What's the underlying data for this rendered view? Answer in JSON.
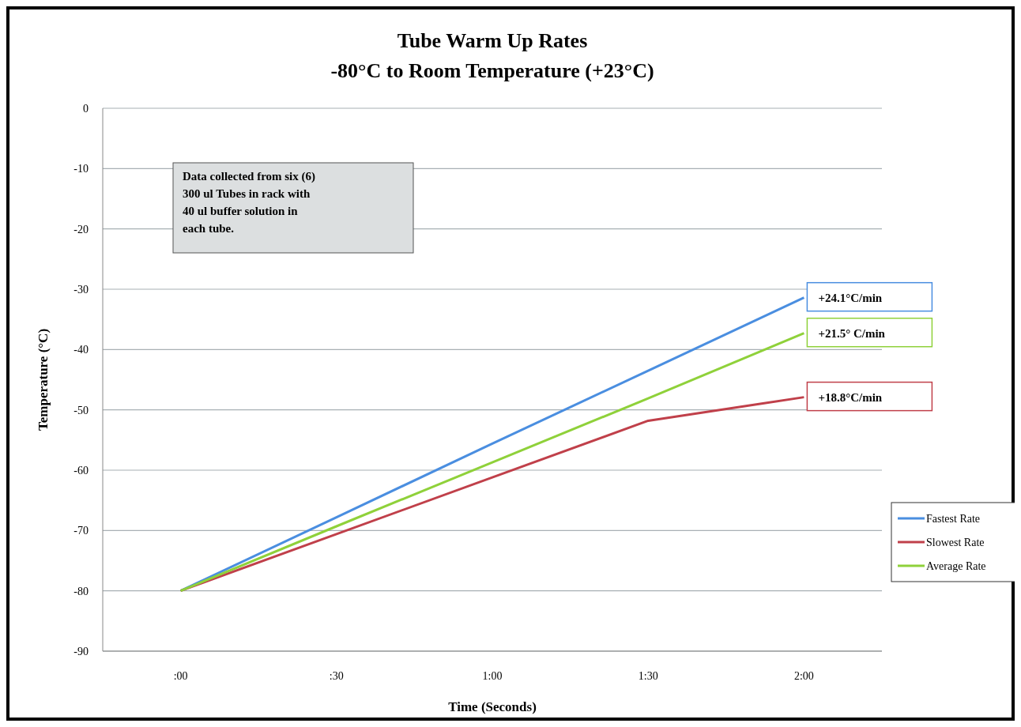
{
  "chart_data": {
    "type": "line",
    "title": "Tube Warm Up Rates",
    "subtitle": "-80°C to Room Temperature (+23°C)",
    "xlabel": "Time (Seconds)",
    "ylabel": "Temperature (°C)",
    "categories": [
      ":00",
      ":30",
      "1:00",
      "1:30",
      "2:00"
    ],
    "series": [
      {
        "name": "Fastest Rate",
        "color": "#4a8ee0",
        "values": [
          -80,
          -67.8,
          -55.6,
          -43.5,
          -31.4
        ]
      },
      {
        "name": "Slowest Rate",
        "color": "#c0404a",
        "values": [
          -80,
          -70.6,
          -61.2,
          -51.8,
          -47.9
        ]
      },
      {
        "name": "Average Rate",
        "color": "#8fd13a",
        "values": [
          -80,
          -69.3,
          -58.7,
          -48.1,
          -37.3
        ]
      }
    ],
    "ylim": [
      -90,
      0
    ],
    "yticks": [
      -90,
      -80,
      -70,
      -60,
      -50,
      -40,
      -30,
      -20,
      -10,
      0
    ],
    "grid": "y",
    "legend": "right",
    "line_style": "solid",
    "marker": "none",
    "annotations": [
      "Data collected from six (6) 300 ul Tubes in rack with 40 ul buffer solution in each tube.",
      {
        "text": "+24.1°C/min",
        "x": "2:00",
        "y": -31.4
      },
      {
        "text": "+18.8°C/min",
        "x": "2:00",
        "y": -47.9
      },
      {
        "text": "+21.5° C/min",
        "x": "2:00",
        "y": -37.3
      }
    ]
  }
}
